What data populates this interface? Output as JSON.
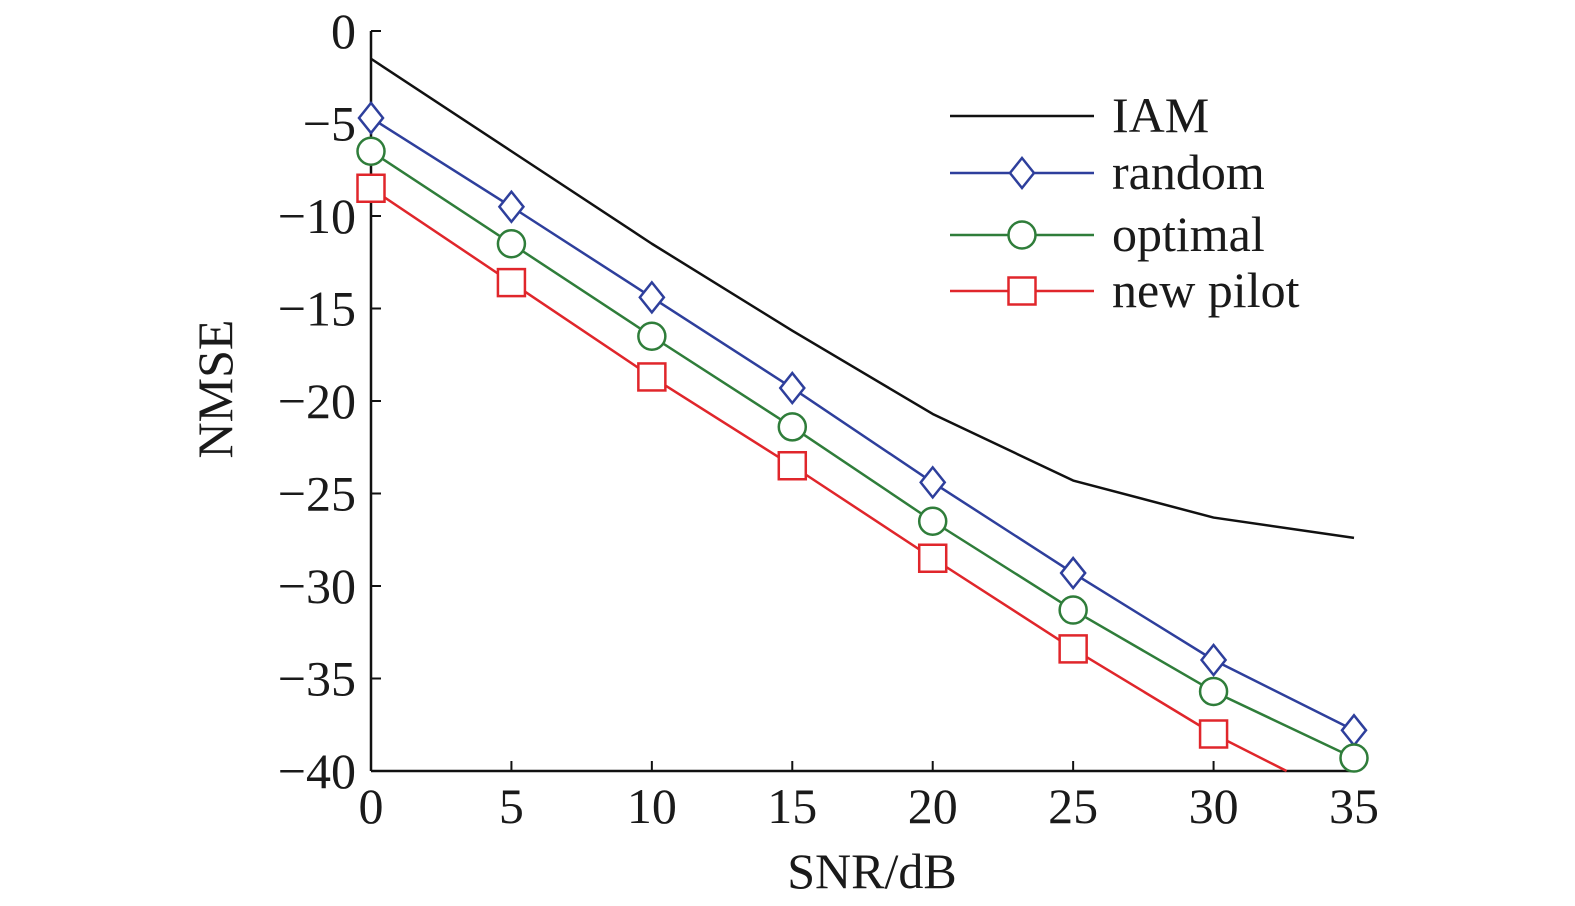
{
  "chart_data": {
    "type": "line",
    "title": "",
    "xlabel": "SNR/dB",
    "ylabel": "NMSE",
    "xlim": [
      0,
      35
    ],
    "ylim": [
      -40,
      0
    ],
    "xticks": [
      0,
      5,
      10,
      15,
      20,
      25,
      30,
      35
    ],
    "yticks": [
      0,
      -5,
      -10,
      -15,
      -20,
      -25,
      -30,
      -35,
      -40
    ],
    "xtick_labels": [
      "0",
      "5",
      "10",
      "15",
      "20",
      "25",
      "30",
      "35"
    ],
    "ytick_labels": [
      "0",
      "−5",
      "−10",
      "−15",
      "−20",
      "−25",
      "−30",
      "−35",
      "−40"
    ],
    "grid": false,
    "legend_position": "top-right",
    "series": [
      {
        "name": "IAM",
        "color": "#111111",
        "marker": "none",
        "x": [
          0,
          5,
          10,
          15,
          20,
          25,
          30,
          35
        ],
        "y": [
          -1.5,
          -6.5,
          -11.5,
          -16.2,
          -20.7,
          -24.3,
          -26.3,
          -27.4
        ]
      },
      {
        "name": "random",
        "color": "#2e3f9c",
        "marker": "diamond",
        "x": [
          0,
          5,
          10,
          15,
          20,
          25,
          30,
          35
        ],
        "y": [
          -4.7,
          -9.5,
          -14.4,
          -19.3,
          -24.4,
          -29.3,
          -34.0,
          -37.8
        ]
      },
      {
        "name": "optimal",
        "color": "#2f7d3a",
        "marker": "circle",
        "x": [
          0,
          5,
          10,
          15,
          20,
          25,
          30,
          35
        ],
        "y": [
          -6.5,
          -11.5,
          -16.5,
          -21.4,
          -26.5,
          -31.3,
          -35.7,
          -39.3
        ]
      },
      {
        "name": "new pilot",
        "color": "#e0262b",
        "marker": "square",
        "x": [
          0,
          5,
          10,
          15,
          20,
          25,
          30,
          32.6
        ],
        "y": [
          -8.5,
          -13.6,
          -18.7,
          -23.5,
          -28.5,
          -33.4,
          -38.0,
          -40.0
        ],
        "marker_count": 7
      }
    ]
  }
}
